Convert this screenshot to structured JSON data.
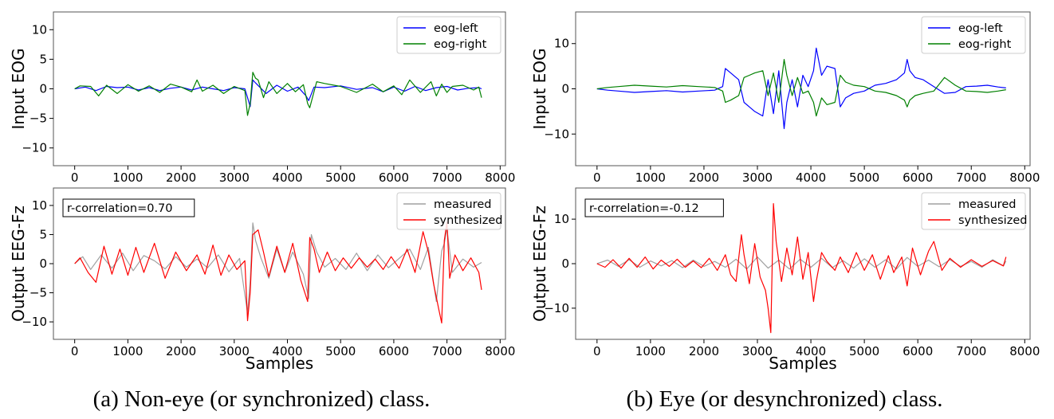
{
  "figure": {
    "caption_a": "(a) Non-eye (or synchronized) class.",
    "caption_b": "(b) Eye (or desynchronized) class."
  },
  "colors": {
    "eog_left": "#0000ff",
    "eog_right": "#008000",
    "measured": "#a0a0a0",
    "synthesized": "#ff0000"
  },
  "chart_data": [
    {
      "type": "line",
      "panel": "a-top",
      "xlabel": "",
      "ylabel": "Input EOG",
      "xlim": [
        -400,
        8100
      ],
      "ylim": [
        -13,
        13
      ],
      "xticks": [
        0,
        1000,
        2000,
        3000,
        4000,
        5000,
        6000,
        7000,
        8000
      ],
      "yticks": [
        -10,
        -5,
        0,
        5,
        10
      ],
      "legend_position": "top-right",
      "series": [
        {
          "name": "eog-left",
          "color": "#0000ff",
          "x": [
            0,
            200,
            400,
            600,
            800,
            1000,
            1200,
            1400,
            1600,
            1800,
            2000,
            2200,
            2400,
            2600,
            2800,
            3000,
            3200,
            3250,
            3300,
            3350,
            3400,
            3600,
            3800,
            4000,
            4200,
            4350,
            4400,
            4500,
            4700,
            5000,
            5300,
            5600,
            5800,
            6000,
            6200,
            6400,
            6600,
            6800,
            7000,
            7200,
            7400,
            7600,
            7650
          ],
          "y": [
            0,
            0.3,
            -0.3,
            0.4,
            0.2,
            0.3,
            -0.2,
            0.2,
            -0.3,
            0.1,
            0.3,
            -0.2,
            0.3,
            0,
            -0.3,
            0.2,
            0,
            -1.5,
            -3,
            1.5,
            1,
            -0.8,
            0.6,
            -0.4,
            0.3,
            -1.2,
            -2,
            0.3,
            0.2,
            0.5,
            -0.1,
            0.2,
            -0.5,
            0.3,
            -0.4,
            0.4,
            -0.3,
            0.2,
            0.4,
            -0.2,
            0.1,
            0.2,
            0
          ]
        },
        {
          "name": "eog-right",
          "color": "#008000",
          "x": [
            0,
            100,
            300,
            450,
            600,
            800,
            1000,
            1200,
            1400,
            1600,
            1800,
            2000,
            2200,
            2300,
            2400,
            2600,
            2800,
            3000,
            3200,
            3250,
            3300,
            3350,
            3400,
            3450,
            3550,
            3650,
            3800,
            4000,
            4150,
            4300,
            4380,
            4420,
            4550,
            4700,
            5000,
            5300,
            5600,
            5800,
            6000,
            6150,
            6300,
            6500,
            6700,
            6800,
            6900,
            7000,
            7100,
            7300,
            7500,
            7600,
            7650
          ],
          "y": [
            0,
            0.5,
            0.4,
            -1.2,
            0.6,
            -0.8,
            0.7,
            -0.4,
            0.5,
            -0.6,
            0.8,
            0.3,
            -0.5,
            1.5,
            -0.4,
            0.6,
            -0.8,
            0.4,
            -0.3,
            -4.5,
            -2.5,
            2.8,
            1.8,
            1.5,
            -1.5,
            1.2,
            -0.8,
            0.9,
            -0.5,
            0.7,
            -2.5,
            -3.2,
            1.2,
            0.9,
            0.4,
            -0.6,
            0.8,
            -0.5,
            0.5,
            -1.0,
            1.5,
            -0.6,
            1.2,
            -1.2,
            0.8,
            -0.6,
            0.4,
            0.6,
            -0.2,
            0.3,
            -1.5
          ]
        }
      ]
    },
    {
      "type": "line",
      "panel": "a-bottom",
      "xlabel": "Samples",
      "ylabel": "Output EEG-Fz",
      "xlim": [
        -400,
        8100
      ],
      "ylim": [
        -13,
        13
      ],
      "xticks": [
        0,
        1000,
        2000,
        3000,
        4000,
        5000,
        6000,
        7000,
        8000
      ],
      "yticks": [
        -10,
        -5,
        0,
        5,
        10
      ],
      "legend_position": "top-right",
      "annotation": "r-correlation=0.70",
      "series": [
        {
          "name": "measured",
          "color": "#a0a0a0",
          "x": [
            0,
            150,
            300,
            500,
            700,
            900,
            1100,
            1300,
            1500,
            1700,
            1900,
            2100,
            2300,
            2500,
            2700,
            2900,
            3100,
            3250,
            3300,
            3350,
            3400,
            3500,
            3650,
            3800,
            3950,
            4100,
            4300,
            4400,
            4450,
            4550,
            4700,
            4900,
            5100,
            5300,
            5500,
            5700,
            5900,
            6100,
            6300,
            6500,
            6650,
            6800,
            6900,
            6950,
            7000,
            7100,
            7300,
            7500,
            7650
          ],
          "y": [
            0,
            1.2,
            -1.0,
            1.5,
            -0.8,
            1.8,
            -1.2,
            1.4,
            0.5,
            -0.9,
            1.2,
            -0.6,
            0.8,
            -0.7,
            1.5,
            -1.4,
            0.9,
            -8.5,
            -3.0,
            7.0,
            4.0,
            1.0,
            -2.5,
            2.5,
            -1.5,
            2.0,
            -1.8,
            -6.0,
            5.0,
            2.0,
            -0.6,
            0.9,
            -1.0,
            1.8,
            -1.2,
            1.5,
            -0.7,
            0.9,
            2.5,
            -1.0,
            2.8,
            -6.5,
            2.2,
            3.5,
            6.0,
            -1.5,
            0.8,
            -0.6,
            0.2
          ]
        },
        {
          "name": "synthesized",
          "color": "#ff0000",
          "x": [
            0,
            100,
            250,
            400,
            550,
            700,
            850,
            1000,
            1150,
            1300,
            1500,
            1700,
            1900,
            2100,
            2300,
            2450,
            2600,
            2750,
            2900,
            3050,
            3200,
            3250,
            3300,
            3350,
            3450,
            3550,
            3650,
            3800,
            3950,
            4100,
            4250,
            4380,
            4420,
            4500,
            4600,
            4750,
            4900,
            5050,
            5200,
            5350,
            5500,
            5650,
            5800,
            5950,
            6100,
            6250,
            6400,
            6550,
            6650,
            6750,
            6850,
            6900,
            6950,
            7000,
            7050,
            7150,
            7300,
            7450,
            7600,
            7650
          ],
          "y": [
            0,
            1.0,
            -1.5,
            -3.2,
            3.0,
            -1.8,
            2.5,
            -2.0,
            2.8,
            -1.5,
            3.5,
            -2.5,
            2.0,
            -1.2,
            1.5,
            -1.8,
            3.2,
            -2.0,
            1.5,
            -1.0,
            0.5,
            -9.8,
            -5.0,
            5.0,
            5.8,
            2.0,
            -2.2,
            3.0,
            -1.5,
            3.5,
            -2.8,
            -6.5,
            4.5,
            2.5,
            -1.5,
            2.0,
            -1.2,
            1.0,
            -0.8,
            1.0,
            -0.6,
            0.8,
            -1.0,
            1.2,
            -0.8,
            2.5,
            -1.5,
            5.5,
            2.0,
            -3.5,
            -8.0,
            -10.2,
            4.0,
            7.2,
            -2.5,
            1.5,
            -1.2,
            1.0,
            -1.5,
            -4.5
          ]
        }
      ]
    },
    {
      "type": "line",
      "panel": "b-top",
      "xlabel": "",
      "ylabel": "Input EOG",
      "xlim": [
        -400,
        8100
      ],
      "ylim": [
        -17,
        17
      ],
      "xticks": [
        0,
        1000,
        2000,
        3000,
        4000,
        5000,
        6000,
        7000,
        8000
      ],
      "yticks": [
        -10,
        0,
        10
      ],
      "legend_position": "top-right",
      "series": [
        {
          "name": "eog-left",
          "color": "#0000ff",
          "x": [
            0,
            200,
            400,
            700,
            1000,
            1300,
            1600,
            1900,
            2200,
            2350,
            2400,
            2500,
            2650,
            2750,
            2850,
            2950,
            3100,
            3200,
            3300,
            3400,
            3500,
            3550,
            3650,
            3750,
            3850,
            3950,
            4050,
            4100,
            4200,
            4300,
            4450,
            4550,
            4650,
            4800,
            5000,
            5200,
            5400,
            5600,
            5750,
            5800,
            5850,
            5950,
            6100,
            6300,
            6500,
            6700,
            6900,
            7100,
            7300,
            7500,
            7650
          ],
          "y": [
            0,
            -0.3,
            -0.5,
            -0.8,
            -0.6,
            -0.4,
            -0.7,
            -0.5,
            -0.3,
            0.5,
            4.5,
            3.5,
            2.0,
            -3.0,
            -4.0,
            -5.0,
            -6.0,
            2.0,
            -5.5,
            4.0,
            -8.8,
            -3.0,
            2.0,
            -4.0,
            3.0,
            0.5,
            4.0,
            9.0,
            3.0,
            5.0,
            4.5,
            -4.0,
            -2.0,
            -1.0,
            -0.5,
            0.8,
            1.2,
            2.0,
            3.5,
            6.5,
            4.0,
            2.5,
            2.0,
            0.5,
            -1.0,
            -0.8,
            0.5,
            0.6,
            0.8,
            0.4,
            0.2
          ]
        },
        {
          "name": "eog-right",
          "color": "#008000",
          "x": [
            0,
            200,
            400,
            700,
            1000,
            1300,
            1600,
            1900,
            2200,
            2350,
            2400,
            2500,
            2650,
            2750,
            2850,
            2950,
            3100,
            3200,
            3300,
            3400,
            3500,
            3550,
            3650,
            3750,
            3850,
            3950,
            4050,
            4100,
            4200,
            4300,
            4450,
            4550,
            4650,
            4800,
            5000,
            5200,
            5400,
            5600,
            5750,
            5800,
            5850,
            5950,
            6100,
            6300,
            6500,
            6700,
            6900,
            7100,
            7300,
            7500,
            7650
          ],
          "y": [
            0,
            0.3,
            0.5,
            0.8,
            0.6,
            0.4,
            0.7,
            0.5,
            0.3,
            -0.5,
            -3.0,
            -2.5,
            -1.5,
            2.5,
            3.0,
            3.5,
            4.0,
            -1.5,
            3.5,
            -3.0,
            6.5,
            3.0,
            -1.5,
            2.5,
            -1.0,
            -0.5,
            -3.0,
            -6.0,
            -2.0,
            -3.5,
            -3.0,
            3.0,
            1.5,
            0.8,
            0.5,
            -0.5,
            -0.8,
            -1.5,
            -2.5,
            -4.0,
            -2.5,
            -1.5,
            -1.0,
            -0.5,
            2.5,
            0.8,
            -0.5,
            -0.6,
            -0.8,
            -0.5,
            -0.2
          ]
        }
      ]
    },
    {
      "type": "line",
      "panel": "b-bottom",
      "xlabel": "Samples",
      "ylabel": "Output EEG-Fz",
      "xlim": [
        -400,
        8100
      ],
      "ylim": [
        -17,
        17
      ],
      "xticks": [
        0,
        1000,
        2000,
        3000,
        4000,
        5000,
        6000,
        7000,
        8000
      ],
      "yticks": [
        -10,
        0,
        10
      ],
      "legend_position": "top-right",
      "annotation": "r-correlation=-0.12",
      "series": [
        {
          "name": "measured",
          "color": "#a0a0a0",
          "x": [
            0,
            200,
            400,
            600,
            800,
            1000,
            1200,
            1400,
            1600,
            1800,
            2000,
            2200,
            2400,
            2600,
            2800,
            3000,
            3200,
            3400,
            3600,
            3800,
            4000,
            4200,
            4400,
            4600,
            4800,
            5000,
            5200,
            5400,
            5600,
            5800,
            6000,
            6200,
            6400,
            6600,
            6800,
            7000,
            7200,
            7400,
            7600,
            7650
          ],
          "y": [
            0,
            0.8,
            -0.6,
            0.9,
            -0.8,
            0.6,
            -0.5,
            0.7,
            -0.9,
            0.8,
            -0.6,
            0.5,
            -0.8,
            1.0,
            -1.2,
            1.5,
            -1.0,
            0.8,
            -1.2,
            1.0,
            -0.8,
            1.2,
            -0.9,
            0.7,
            -1.0,
            1.1,
            -0.8,
            0.9,
            -1.2,
            1.4,
            -0.6,
            0.8,
            -0.7,
            0.9,
            -0.6,
            0.5,
            -0.8,
            0.9,
            -0.5,
            0.6
          ]
        },
        {
          "name": "synthesized",
          "color": "#ff0000",
          "x": [
            0,
            150,
            300,
            450,
            600,
            750,
            900,
            1050,
            1200,
            1350,
            1500,
            1650,
            1800,
            1950,
            2100,
            2250,
            2400,
            2500,
            2600,
            2700,
            2750,
            2850,
            2950,
            3050,
            3150,
            3200,
            3250,
            3300,
            3350,
            3450,
            3550,
            3650,
            3750,
            3850,
            3950,
            4050,
            4100,
            4200,
            4300,
            4450,
            4550,
            4700,
            4850,
            5000,
            5150,
            5300,
            5450,
            5550,
            5700,
            5800,
            5900,
            6050,
            6200,
            6300,
            6450,
            6600,
            6800,
            7000,
            7200,
            7400,
            7600,
            7650
          ],
          "y": [
            0,
            -0.8,
            0.9,
            -1.0,
            1.2,
            -0.8,
            1.5,
            -1.2,
            0.8,
            -0.6,
            1.0,
            -0.8,
            0.6,
            -0.9,
            1.2,
            -1.5,
            2.0,
            -2.5,
            -4.0,
            6.5,
            2.0,
            -4.5,
            4.5,
            -3.0,
            -6.0,
            -10.0,
            -15.5,
            13.5,
            5.0,
            -4.0,
            3.5,
            -2.5,
            6.0,
            -3.5,
            2.5,
            -8.5,
            -4.0,
            2.5,
            0.5,
            -1.5,
            1.5,
            -2.0,
            2.5,
            -1.5,
            2.0,
            -3.5,
            1.8,
            -2.0,
            1.5,
            -5.0,
            3.5,
            -2.5,
            2.8,
            5.0,
            -1.5,
            1.2,
            -0.8,
            0.9,
            -0.6,
            0.7,
            -0.5,
            1.5
          ]
        }
      ]
    }
  ]
}
